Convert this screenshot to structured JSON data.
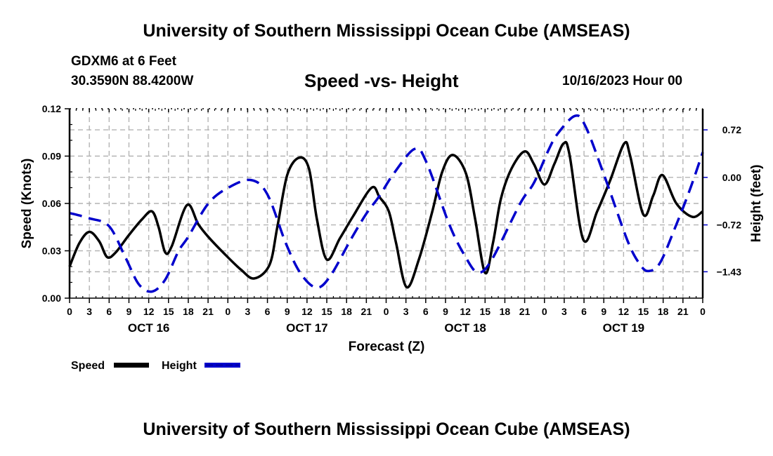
{
  "header": {
    "main_title": "University of Southern Mississippi Ocean Cube (AMSEAS)",
    "station": "GDXM6 at 6 Feet",
    "coords": "30.3590N  88.4200W",
    "subtitle": "Speed -vs- Height",
    "datetime": "10/16/2023 Hour 00",
    "footer_title": "University of Southern Mississippi Ocean Cube (AMSEAS)"
  },
  "chart_data": {
    "type": "line",
    "title": "Speed -vs- Height",
    "xlabel": "Forecast (Z)",
    "ylabel": "Speed (Knots)",
    "y2label": "Height (feet)",
    "xlim": [
      0,
      96
    ],
    "ylim": [
      0,
      0.12
    ],
    "y2lim": [
      -1.83,
      1.04
    ],
    "x_tick_step_hours": 3,
    "x_tick_labels": [
      "0",
      "3",
      "6",
      "9",
      "12",
      "15",
      "18",
      "21",
      "0",
      "3",
      "6",
      "9",
      "12",
      "15",
      "18",
      "21",
      "0",
      "3",
      "6",
      "9",
      "12",
      "15",
      "18",
      "21",
      "0",
      "3",
      "6",
      "9",
      "12",
      "15",
      "18",
      "21",
      "0"
    ],
    "day_labels": [
      {
        "label": "OCT 16",
        "hour": 12
      },
      {
        "label": "OCT 17",
        "hour": 36
      },
      {
        "label": "OCT 18",
        "hour": 60
      },
      {
        "label": "OCT 19",
        "hour": 84
      }
    ],
    "y_ticks": [
      0.0,
      0.03,
      0.06,
      0.09,
      0.12
    ],
    "y_tick_labels": [
      "0.00",
      "0.03",
      "0.06",
      "0.09",
      "0.12"
    ],
    "y2_ticks": [
      0.72,
      0.0,
      -0.72,
      -1.43
    ],
    "y2_tick_labels": [
      "0.72",
      "0.00",
      "−0.72",
      "−1.43"
    ],
    "grid": true,
    "legend": "bottom-left",
    "series": [
      {
        "name": "Speed",
        "axis": "left",
        "color": "#000000",
        "style": "solid",
        "points": [
          [
            0,
            0.02
          ],
          [
            1.5,
            0.035
          ],
          [
            3,
            0.042
          ],
          [
            4.5,
            0.036
          ],
          [
            5.7,
            0.026
          ],
          [
            7,
            0.029
          ],
          [
            9,
            0.04
          ],
          [
            11,
            0.05
          ],
          [
            12.5,
            0.055
          ],
          [
            13.5,
            0.045
          ],
          [
            14.5,
            0.029
          ],
          [
            15.5,
            0.033
          ],
          [
            17.8,
            0.059
          ],
          [
            19.5,
            0.047
          ],
          [
            21,
            0.039
          ],
          [
            23.5,
            0.028
          ],
          [
            26,
            0.018
          ],
          [
            28,
            0.0125
          ],
          [
            30.3,
            0.021
          ],
          [
            31.5,
            0.045
          ],
          [
            33,
            0.078
          ],
          [
            34.8,
            0.089
          ],
          [
            36.3,
            0.082
          ],
          [
            37.5,
            0.05
          ],
          [
            39,
            0.0245
          ],
          [
            41,
            0.038
          ],
          [
            43,
            0.052
          ],
          [
            45.8,
            0.07
          ],
          [
            47,
            0.064
          ],
          [
            48.4,
            0.055
          ],
          [
            49.5,
            0.035
          ],
          [
            51.1,
            0.007
          ],
          [
            53,
            0.025
          ],
          [
            55,
            0.055
          ],
          [
            56.5,
            0.08
          ],
          [
            58.1,
            0.0907
          ],
          [
            60.1,
            0.079
          ],
          [
            61.5,
            0.05
          ],
          [
            63,
            0.016
          ],
          [
            64.2,
            0.035
          ],
          [
            65.4,
            0.063
          ],
          [
            67,
            0.082
          ],
          [
            69,
            0.093
          ],
          [
            70.4,
            0.085
          ],
          [
            72,
            0.072
          ],
          [
            73.5,
            0.085
          ],
          [
            74.9,
            0.098
          ],
          [
            75.8,
            0.091
          ],
          [
            77.9,
            0.037
          ],
          [
            80,
            0.055
          ],
          [
            82,
            0.075
          ],
          [
            84.1,
            0.098
          ],
          [
            85.0,
            0.09
          ],
          [
            87,
            0.053
          ],
          [
            88.5,
            0.065
          ],
          [
            89.9,
            0.078
          ],
          [
            92,
            0.06
          ],
          [
            94.4,
            0.0515
          ],
          [
            96,
            0.055
          ]
        ]
      },
      {
        "name": "Height",
        "axis": "right",
        "color": "#0000cc",
        "style": "dashed",
        "points": [
          [
            0,
            -0.54
          ],
          [
            3,
            -0.62
          ],
          [
            6,
            -0.74
          ],
          [
            8.5,
            -1.22
          ],
          [
            10.5,
            -1.62
          ],
          [
            12.5,
            -1.73
          ],
          [
            14.5,
            -1.55
          ],
          [
            16.5,
            -1.12
          ],
          [
            18,
            -0.9
          ],
          [
            21,
            -0.4
          ],
          [
            24,
            -0.16
          ],
          [
            27.5,
            -0.04
          ],
          [
            30,
            -0.26
          ],
          [
            32.8,
            -1.0
          ],
          [
            35,
            -1.45
          ],
          [
            37.4,
            -1.67
          ],
          [
            39.5,
            -1.5
          ],
          [
            42.7,
            -0.93
          ],
          [
            45,
            -0.55
          ],
          [
            47,
            -0.28
          ],
          [
            49.1,
            0.05
          ],
          [
            52.3,
            0.43
          ],
          [
            54.1,
            0.23
          ],
          [
            57.6,
            -0.72
          ],
          [
            60,
            -1.2
          ],
          [
            61.9,
            -1.44
          ],
          [
            64,
            -1.25
          ],
          [
            68.3,
            -0.4
          ],
          [
            70.4,
            -0.085
          ],
          [
            72.6,
            0.41
          ],
          [
            74,
            0.66
          ],
          [
            76.6,
            0.93
          ],
          [
            78.2,
            0.78
          ],
          [
            81.1,
            0.02
          ],
          [
            84.6,
            -0.96
          ],
          [
            86.5,
            -1.32
          ],
          [
            87.8,
            -1.42
          ],
          [
            89.5,
            -1.3
          ],
          [
            91.7,
            -0.79
          ],
          [
            94,
            -0.2
          ],
          [
            96,
            0.38
          ]
        ]
      }
    ]
  },
  "legend": {
    "items": [
      {
        "label": "Speed",
        "color": "#000000",
        "style": "solid"
      },
      {
        "label": "Height",
        "color": "#0000cc",
        "style": "dashed"
      }
    ]
  }
}
